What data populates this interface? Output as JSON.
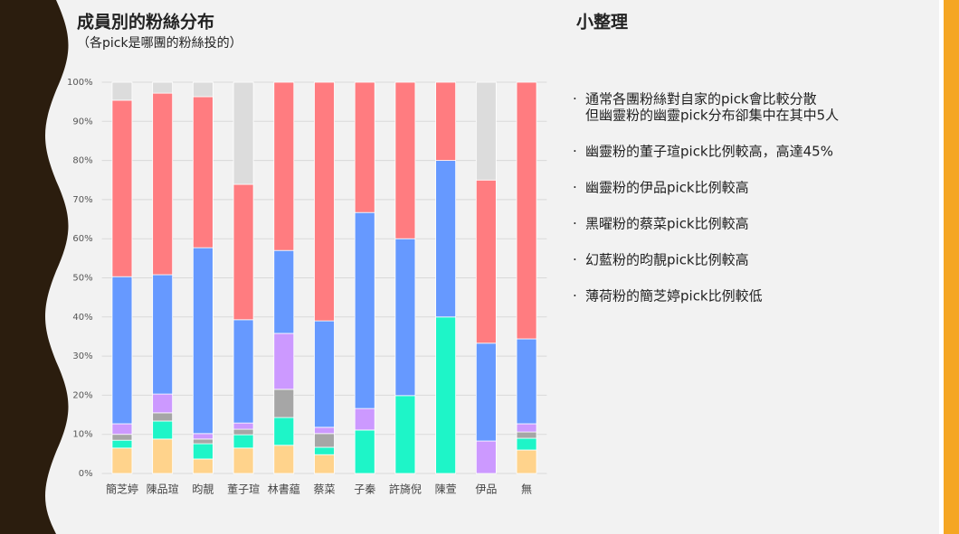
{
  "chart_data": {
    "type": "stacked_bar_100",
    "title": "成員別的粉絲分布",
    "subtitle": "（各pick是哪團的粉絲投的）",
    "categories": [
      "簡芝婷",
      "陳品瑄",
      "昀靚",
      "董子瑄",
      "林書藴",
      "蔡菜",
      "子秦",
      "許旖倪",
      "陳萱",
      "伊品",
      "無"
    ],
    "series": [
      {
        "color": "#ffd38c",
        "values": [
          6.5,
          8.8,
          3.7,
          6.5,
          7.2,
          4.8,
          0,
          0,
          0,
          0,
          6
        ]
      },
      {
        "color": "#1ef5c8",
        "values": [
          2,
          4.6,
          3.9,
          3.4,
          7.1,
          1.9,
          11.1,
          19.9,
          40,
          0,
          3
        ]
      },
      {
        "color": "#a6a6a6",
        "values": [
          1.5,
          2.1,
          1.2,
          1.4,
          7.2,
          3.5,
          0,
          0,
          0,
          0,
          1.6
        ]
      },
      {
        "color": "#cc99ff",
        "values": [
          2.7,
          4.8,
          1.4,
          1.6,
          14.3,
          1.6,
          5.5,
          0,
          0,
          8.3,
          2.1
        ]
      },
      {
        "color": "#6699ff",
        "values": [
          37.6,
          30.5,
          47.5,
          26.4,
          21.2,
          27.2,
          50.1,
          40.1,
          40,
          25,
          21.7
        ]
      },
      {
        "color": "#ff7c80",
        "values": [
          45.1,
          46.4,
          38.6,
          34.6,
          43,
          61,
          33.3,
          40,
          20,
          41.7,
          65.6
        ]
      },
      {
        "color": "#dcdcdc",
        "values": [
          4.6,
          2.8,
          3.7,
          26.1,
          0,
          0,
          0,
          0,
          0,
          25,
          0
        ]
      }
    ],
    "ylim": [
      0,
      100
    ],
    "yticks": [
      {
        "value": 0,
        "label": "0%"
      },
      {
        "value": 10,
        "label": "10%"
      },
      {
        "value": 20,
        "label": "20%"
      },
      {
        "value": 30,
        "label": "30%"
      },
      {
        "value": 40,
        "label": "40%"
      },
      {
        "value": 50,
        "label": "50%"
      },
      {
        "value": 60,
        "label": "60%"
      },
      {
        "value": 70,
        "label": "70%"
      },
      {
        "value": 80,
        "label": "80%"
      },
      {
        "value": 90,
        "label": "90%"
      },
      {
        "value": 100,
        "label": "100%"
      }
    ],
    "grid": true
  },
  "notes": {
    "title": "小整理",
    "items": [
      [
        "通常各團粉絲對自家的pick會比較分散",
        "但幽靈粉的幽靈pick分布卻集中在其中5人"
      ],
      [
        "幽靈粉的董子瑄pick比例較高，高達45%"
      ],
      [
        "幽靈粉的伊品pick比例較高"
      ],
      [
        "黑曜粉的蔡菜pick比例較高"
      ],
      [
        "幻藍粉的昀靚pick比例較高"
      ],
      [
        "薄荷粉的簡芝婷pick比例較低"
      ]
    ],
    "bullet": "·"
  }
}
